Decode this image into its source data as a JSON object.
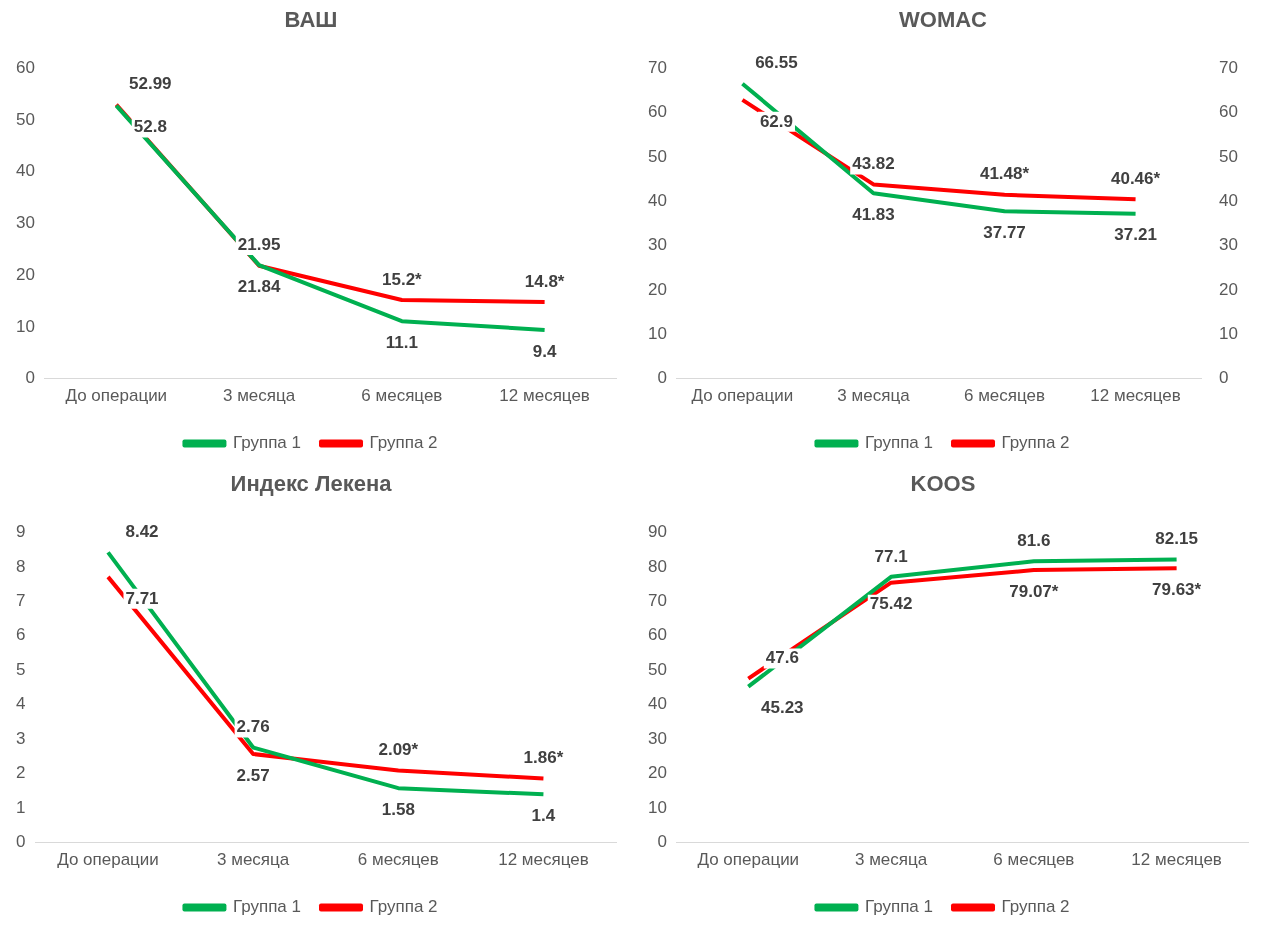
{
  "chart_data": [
    {
      "type": "line",
      "title": "ВАШ",
      "categories": [
        "До операции",
        "3 месяца",
        "6 месяцев",
        "12 месяцев"
      ],
      "series": [
        {
          "name": "Группа 1",
          "color": "#00b050",
          "values": [
            52.8,
            21.95,
            11.1,
            9.4
          ],
          "value_labels": [
            "52.8",
            "21.95",
            "11.1",
            "9.4"
          ]
        },
        {
          "name": "Группа 2",
          "color": "#ff0000",
          "values": [
            52.99,
            21.84,
            15.2,
            14.8
          ],
          "value_labels": [
            "52.99",
            "21.84",
            "15.2*",
            "14.8*"
          ]
        }
      ],
      "ylim": [
        0,
        60
      ],
      "yticks": [
        0,
        10,
        20,
        30,
        40,
        50,
        60
      ],
      "grid": false,
      "legend": "bottom",
      "marker": "none",
      "line_style": "solid"
    },
    {
      "type": "line",
      "title": "WOMAC",
      "categories": [
        "До операции",
        "3 месяца",
        "6 месяцев",
        "12 месяцев"
      ],
      "series": [
        {
          "name": "Группа 1",
          "color": "#00b050",
          "values": [
            66.55,
            41.83,
            37.77,
            37.21
          ],
          "value_labels": [
            "66.55",
            "41.83",
            "37.77",
            "37.21"
          ]
        },
        {
          "name": "Группа 2",
          "color": "#ff0000",
          "values": [
            62.9,
            43.82,
            41.48,
            40.46
          ],
          "value_labels": [
            "62.9",
            "43.82",
            "41.48*",
            "40.46*"
          ]
        }
      ],
      "ylim": [
        0,
        70
      ],
      "yticks": [
        0,
        10,
        20,
        30,
        40,
        50,
        60,
        70
      ],
      "y2lim": [
        0,
        70
      ],
      "y2ticks": [
        0,
        10,
        20,
        30,
        40,
        50,
        60,
        70
      ],
      "grid": false,
      "legend": "bottom",
      "marker": "none",
      "line_style": "solid"
    },
    {
      "type": "line",
      "title": "Индекс Лекена",
      "categories": [
        "До операции",
        "3 месяца",
        "6 месяцев",
        "12 месяцев"
      ],
      "series": [
        {
          "name": "Группа 1",
          "color": "#00b050",
          "values": [
            8.42,
            2.76,
            1.58,
            1.4
          ],
          "value_labels": [
            "8.42",
            "2.76",
            "1.58",
            "1.4"
          ]
        },
        {
          "name": "Группа 2",
          "color": "#ff0000",
          "values": [
            7.71,
            2.57,
            2.09,
            1.86
          ],
          "value_labels": [
            "7.71",
            "2.57",
            "2.09*",
            "1.86*"
          ]
        }
      ],
      "ylim": [
        0,
        9
      ],
      "yticks": [
        0,
        1,
        2,
        3,
        4,
        5,
        6,
        7,
        8,
        9
      ],
      "grid": false,
      "legend": "bottom",
      "marker": "none",
      "line_style": "solid"
    },
    {
      "type": "line",
      "title": "KOOS",
      "categories": [
        "До операции",
        "3 месяца",
        "6 месяцев",
        "12 месяцев"
      ],
      "series": [
        {
          "name": "Группа 1",
          "color": "#00b050",
          "values": [
            45.23,
            77.1,
            81.6,
            82.15
          ],
          "value_labels": [
            "45.23",
            "77.1",
            "81.6",
            "82.15"
          ]
        },
        {
          "name": "Группа 2",
          "color": "#ff0000",
          "values": [
            47.6,
            75.42,
            79.07,
            79.63
          ],
          "value_labels": [
            "47.6",
            "75.42",
            "79.07*",
            "79.63*"
          ]
        }
      ],
      "ylim": [
        0,
        90
      ],
      "yticks": [
        0,
        10,
        20,
        30,
        40,
        50,
        60,
        70,
        80,
        90
      ],
      "grid": false,
      "legend": "bottom",
      "marker": "none",
      "line_style": "solid"
    }
  ]
}
